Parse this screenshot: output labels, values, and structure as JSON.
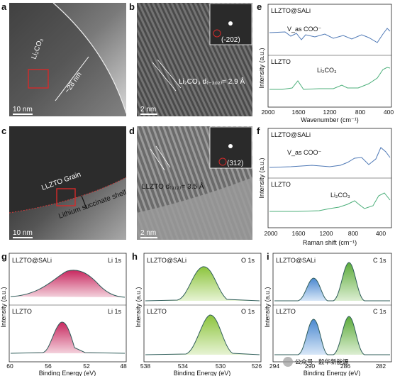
{
  "panels": {
    "a": {
      "label": "a",
      "li2co3": "Li₂CO₃",
      "thickness": "~28 nm",
      "scale_bar": "10 nm"
    },
    "b": {
      "label": "b",
      "lattice": "Li₂CO₃ d₍₋₂₀₂₎= 2.9 Å",
      "fft_index": "(-202)",
      "scale_bar": "2 nm"
    },
    "c": {
      "label": "c",
      "grain": "LLZTO Grain",
      "shell": "Lithium succinate shell",
      "scale_bar": "10 nm"
    },
    "d": {
      "label": "d",
      "lattice": "LLZTO d₍₃₁₂₎= 3.5 Å",
      "fft_index": "(312)",
      "scale_bar": "2 nm"
    },
    "e": {
      "label": "e",
      "top_sample": "LLZTO@SALi",
      "bottom_sample": "LLZTO",
      "peak_top": "V_as COO⁻",
      "peak_bottom": "Li₂CO₃",
      "ylabel": "Intensity (a.u.)",
      "xlabel": "Wavenumber (cm⁻¹)",
      "ticks": [
        "2000",
        "1600",
        "1200",
        "800",
        "400"
      ]
    },
    "f": {
      "label": "f",
      "top_sample": "LLZTO@SALi",
      "bottom_sample": "LLZTO",
      "peak_top": "V_as COO⁻",
      "peak_bottom": "Li₂CO₃",
      "ylabel": "Intensity (a.u.)",
      "xlabel": "Raman shift (cm⁻¹)",
      "ticks": [
        "2000",
        "1600",
        "1200",
        "800",
        "400"
      ]
    },
    "g": {
      "label": "g",
      "top_sample": "LLZTO@SALi",
      "bottom_sample": "LLZTO",
      "core": "Li 1s",
      "ylabel": "Intensity (a.u.)",
      "xlabel": "Binding Energy (eV)",
      "ticks": [
        "60",
        "56",
        "52",
        "48"
      ]
    },
    "h": {
      "label": "h",
      "top_sample": "LLZTO@SALi",
      "bottom_sample": "LLZTO",
      "core": "O 1s",
      "ylabel": "Intensity (a.u.)",
      "xlabel": "Binding Energy (eV)",
      "ticks": [
        "538",
        "534",
        "530",
        "526"
      ]
    },
    "i": {
      "label": "i",
      "top_sample": "LLZTO@SALi",
      "bottom_sample": "LLZTO",
      "core": "C 1s",
      "ylabel": "Intensity (a.u.)",
      "xlabel": "Binding Energy (eV)",
      "ticks": [
        "294",
        "290",
        "286",
        "282"
      ]
    }
  },
  "watermark": "公众号 · 毅华新能源",
  "colors": {
    "ftir_top": "#4f79b6",
    "ftir_bottom": "#4caf7a",
    "li_fill": "#c8285f",
    "o_fill": "#8cc43c",
    "c_fill_1": "#4a88d0",
    "c_fill_2": "#5cab3a"
  },
  "chart_data": [
    {
      "type": "line",
      "panel": "e",
      "title": "",
      "xlabel": "Wavenumber (cm⁻¹)",
      "ylabel": "Intensity (a.u.)",
      "xlim": [
        2000,
        400
      ],
      "series": [
        {
          "name": "LLZTO@SALi",
          "x": [
            2000,
            1700,
            1560,
            1420,
            1300,
            1050,
            900,
            650,
            450,
            400
          ],
          "y": [
            0.82,
            0.84,
            0.78,
            0.72,
            0.79,
            0.8,
            0.76,
            0.8,
            0.65,
            0.88
          ]
        },
        {
          "name": "LLZTO",
          "x": [
            2000,
            1700,
            1430,
            1300,
            1050,
            880,
            700,
            500,
            450,
            400
          ],
          "y": [
            0.18,
            0.18,
            0.3,
            0.2,
            0.19,
            0.22,
            0.2,
            0.3,
            0.42,
            0.46
          ]
        }
      ],
      "annotations": [
        "V_as COO⁻",
        "Li₂CO₃"
      ]
    },
    {
      "type": "line",
      "panel": "f",
      "title": "",
      "xlabel": "Raman shift (cm⁻¹)",
      "ylabel": "Intensity (a.u.)",
      "xlim": [
        2000,
        200
      ],
      "series": [
        {
          "name": "LLZTO@SALi",
          "x": [
            2000,
            1600,
            1420,
            1100,
            850,
            700,
            500,
            360,
            300
          ],
          "y": [
            0.75,
            0.76,
            0.78,
            0.76,
            0.84,
            0.88,
            0.8,
            0.96,
            0.85
          ]
        },
        {
          "name": "LLZTO",
          "x": [
            2000,
            1600,
            1300,
            1090,
            850,
            730,
            500,
            360,
            300
          ],
          "y": [
            0.12,
            0.12,
            0.13,
            0.18,
            0.26,
            0.32,
            0.2,
            0.45,
            0.35
          ]
        }
      ],
      "annotations": [
        "V_as COO⁻",
        "Li₂CO₃"
      ]
    },
    {
      "type": "line",
      "panel": "g",
      "title": "",
      "xlabel": "Binding Energy (eV)",
      "ylabel": "Intensity (a.u.)",
      "xlim": [
        60,
        48
      ],
      "series": [
        {
          "name": "LLZTO@SALi",
          "peak_center_eV": 53.0
        },
        {
          "name": "LLZTO",
          "peak_center_eV": 54.8
        }
      ],
      "annotations": [
        "Li 1s"
      ]
    },
    {
      "type": "line",
      "panel": "h",
      "title": "",
      "xlabel": "Binding Energy (eV)",
      "ylabel": "Intensity (a.u.)",
      "xlim": [
        538,
        526
      ],
      "series": [
        {
          "name": "LLZTO@SALi",
          "peak_center_eV": 532.0
        },
        {
          "name": "LLZTO",
          "peak_center_eV": 531.5
        }
      ],
      "annotations": [
        "O 1s"
      ]
    },
    {
      "type": "line",
      "panel": "i",
      "title": "",
      "xlabel": "Binding Energy (eV)",
      "ylabel": "Intensity (a.u.)",
      "xlim": [
        294,
        280
      ],
      "series": [
        {
          "name": "LLZTO@SALi",
          "peak_centers_eV": [
            289.5,
            284.8
          ]
        },
        {
          "name": "LLZTO",
          "peak_centers_eV": [
            289.6,
            284.8
          ]
        }
      ],
      "annotations": [
        "C 1s"
      ]
    }
  ]
}
